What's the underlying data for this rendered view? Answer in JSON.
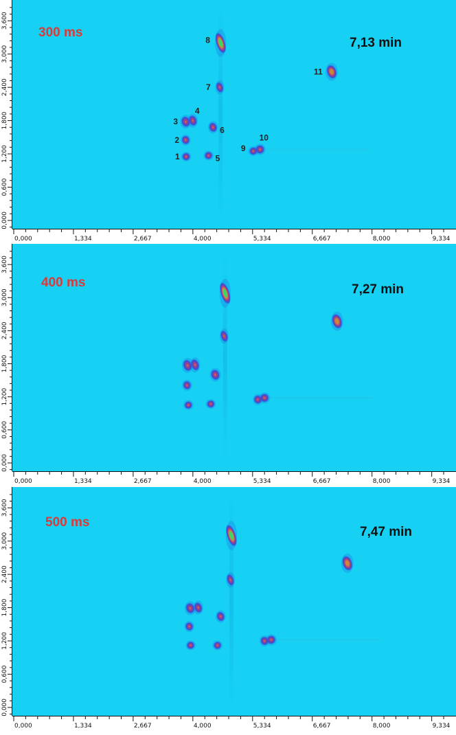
{
  "colors": {
    "background": "#17d1f5",
    "title": "#d93a3a",
    "axis": "#111111",
    "peak_outer": "#3a4bd8",
    "peak_mid": "#b03f7a",
    "peak_inner": "#c88a3a",
    "peak_core": "#38d96a"
  },
  "chart_data": [
    {
      "type": "heatmap",
      "title": "300 ms",
      "subtitle": "7,13 min",
      "x_ticks": [
        "0,000",
        "1,334",
        "2,667",
        "4,000",
        "5,334",
        "6,667",
        "8,000",
        "9,334"
      ],
      "y_ticks": [
        "3,600",
        "3,000",
        "2,400",
        "1,800",
        "1,200",
        "0,600",
        "0,000"
      ],
      "xlim": [
        0,
        9.8
      ],
      "ylim": [
        -0.15,
        3.95
      ],
      "peaks": [
        {
          "label": "1",
          "x": 3.85,
          "y": 1.15,
          "intensity": 0.5,
          "rx": 0.09,
          "ry": 0.07
        },
        {
          "label": "2",
          "x": 3.84,
          "y": 1.45,
          "intensity": 0.5,
          "rx": 0.09,
          "ry": 0.08
        },
        {
          "label": "3",
          "x": 3.84,
          "y": 1.78,
          "intensity": 0.6,
          "rx": 0.1,
          "ry": 0.1
        },
        {
          "label": "4",
          "x": 4.0,
          "y": 1.8,
          "intensity": 0.6,
          "rx": 0.09,
          "ry": 0.1
        },
        {
          "label": "5",
          "x": 4.35,
          "y": 1.17,
          "intensity": 0.5,
          "rx": 0.09,
          "ry": 0.07
        },
        {
          "label": "6",
          "x": 4.45,
          "y": 1.68,
          "intensity": 0.55,
          "rx": 0.09,
          "ry": 0.09
        },
        {
          "label": "7",
          "x": 4.6,
          "y": 2.4,
          "intensity": 0.55,
          "rx": 0.08,
          "ry": 0.1
        },
        {
          "label": "8",
          "x": 4.62,
          "y": 3.2,
          "intensity": 1.0,
          "rx": 0.1,
          "ry": 0.2
        },
        {
          "label": "9",
          "x": 5.35,
          "y": 1.25,
          "intensity": 0.55,
          "rx": 0.09,
          "ry": 0.07
        },
        {
          "label": "10",
          "x": 5.5,
          "y": 1.28,
          "intensity": 0.6,
          "rx": 0.1,
          "ry": 0.08
        },
        {
          "label": "11",
          "x": 7.1,
          "y": 2.68,
          "intensity": 0.75,
          "rx": 0.11,
          "ry": 0.13
        }
      ]
    },
    {
      "type": "heatmap",
      "title": "400 ms",
      "subtitle": "7,27 min",
      "x_ticks": [
        "0,000",
        "1,334",
        "2,667",
        "4,000",
        "5,334",
        "6,667",
        "8,000",
        "9,334"
      ],
      "y_ticks": [
        "3,600",
        "3,000",
        "2,400",
        "1,800",
        "1,200",
        "0,600",
        "0,000"
      ],
      "xlim": [
        0,
        9.8
      ],
      "ylim": [
        -0.15,
        3.95
      ],
      "peaks": [
        {
          "label": "",
          "x": 3.9,
          "y": 1.05,
          "intensity": 0.5,
          "rx": 0.09,
          "ry": 0.07
        },
        {
          "label": "",
          "x": 3.87,
          "y": 1.41,
          "intensity": 0.5,
          "rx": 0.09,
          "ry": 0.08
        },
        {
          "label": "",
          "x": 3.88,
          "y": 1.77,
          "intensity": 0.6,
          "rx": 0.1,
          "ry": 0.11
        },
        {
          "label": "",
          "x": 4.05,
          "y": 1.78,
          "intensity": 0.6,
          "rx": 0.09,
          "ry": 0.11
        },
        {
          "label": "",
          "x": 4.4,
          "y": 1.07,
          "intensity": 0.5,
          "rx": 0.09,
          "ry": 0.07
        },
        {
          "label": "",
          "x": 4.5,
          "y": 1.6,
          "intensity": 0.55,
          "rx": 0.1,
          "ry": 0.1
        },
        {
          "label": "",
          "x": 4.7,
          "y": 2.3,
          "intensity": 0.55,
          "rx": 0.08,
          "ry": 0.11
        },
        {
          "label": "",
          "x": 4.72,
          "y": 3.08,
          "intensity": 1.0,
          "rx": 0.1,
          "ry": 0.21
        },
        {
          "label": "",
          "x": 5.45,
          "y": 1.15,
          "intensity": 0.55,
          "rx": 0.09,
          "ry": 0.08
        },
        {
          "label": "",
          "x": 5.6,
          "y": 1.18,
          "intensity": 0.6,
          "rx": 0.1,
          "ry": 0.08
        },
        {
          "label": "",
          "x": 7.22,
          "y": 2.57,
          "intensity": 0.75,
          "rx": 0.11,
          "ry": 0.14
        }
      ]
    },
    {
      "type": "heatmap",
      "title": "500 ms",
      "subtitle": "7,47 min",
      "x_ticks": [
        "0,000",
        "1,334",
        "2,667",
        "4,000",
        "5,334",
        "6,667",
        "8,000",
        "9,334"
      ],
      "y_ticks": [
        "3,600",
        "3,000",
        "2,400",
        "1,800",
        "1,200",
        "0,600",
        "0,000"
      ],
      "xlim": [
        0,
        9.8
      ],
      "ylim": [
        -0.15,
        3.95
      ],
      "peaks": [
        {
          "label": "",
          "x": 3.95,
          "y": 1.12,
          "intensity": 0.5,
          "rx": 0.09,
          "ry": 0.07
        },
        {
          "label": "",
          "x": 3.92,
          "y": 1.46,
          "intensity": 0.5,
          "rx": 0.09,
          "ry": 0.08
        },
        {
          "label": "",
          "x": 3.94,
          "y": 1.79,
          "intensity": 0.6,
          "rx": 0.1,
          "ry": 0.1
        },
        {
          "label": "",
          "x": 4.12,
          "y": 1.8,
          "intensity": 0.6,
          "rx": 0.09,
          "ry": 0.1
        },
        {
          "label": "",
          "x": 4.55,
          "y": 1.12,
          "intensity": 0.5,
          "rx": 0.09,
          "ry": 0.07
        },
        {
          "label": "",
          "x": 4.62,
          "y": 1.64,
          "intensity": 0.55,
          "rx": 0.09,
          "ry": 0.09
        },
        {
          "label": "",
          "x": 4.84,
          "y": 2.3,
          "intensity": 0.55,
          "rx": 0.08,
          "ry": 0.11
        },
        {
          "label": "",
          "x": 4.86,
          "y": 3.1,
          "intensity": 1.0,
          "rx": 0.1,
          "ry": 0.21
        },
        {
          "label": "",
          "x": 5.6,
          "y": 1.2,
          "intensity": 0.55,
          "rx": 0.09,
          "ry": 0.08
        },
        {
          "label": "",
          "x": 5.75,
          "y": 1.22,
          "intensity": 0.6,
          "rx": 0.1,
          "ry": 0.08
        },
        {
          "label": "",
          "x": 7.45,
          "y": 2.6,
          "intensity": 0.75,
          "rx": 0.11,
          "ry": 0.14
        }
      ]
    }
  ]
}
